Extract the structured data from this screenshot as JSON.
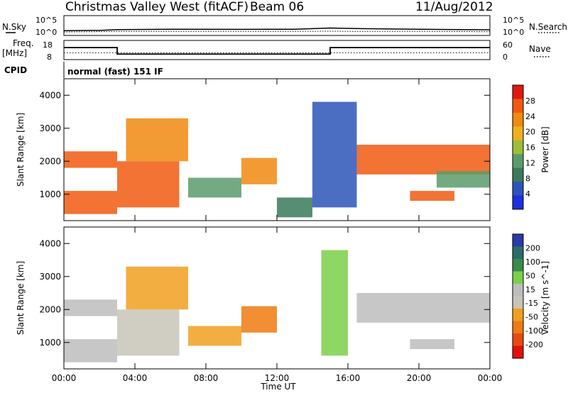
{
  "header": {
    "station_title": "Christmas Valley West (fitACF)",
    "beam_label": "Beam 06",
    "date_label": "11/Aug/2012",
    "cpid_label": "CPID",
    "cpid_value": "normal (fast) 151 IF"
  },
  "sky_panel": {
    "left_label": "N.Sky",
    "right_label": "N.Search",
    "left_ticks": [
      "10^5",
      "10^0"
    ],
    "right_ticks": [
      "10^5",
      "10^0"
    ]
  },
  "freq_panel": {
    "left_label_1": "Freq.",
    "left_label_2": "[MHz]",
    "right_label": "Nave",
    "left_ticks": [
      "18",
      "8"
    ],
    "right_ticks": [
      "60",
      "0"
    ]
  },
  "colors": {
    "power_scale": [
      "#1f2fe0",
      "#2b55b8",
      "#3a7a5a",
      "#5b9b6b",
      "#9bbf3a",
      "#f0b020",
      "#f08a10",
      "#f05a10",
      "#e01a10"
    ],
    "velocity_scale": [
      "#2a3aa8",
      "#2b6c6a",
      "#3a8a4a",
      "#7ad04a",
      "#bdbdbd",
      "#c8c4b8",
      "#f0a020",
      "#f07a10",
      "#e84a10",
      "#e01010"
    ]
  },
  "chart_data": [
    {
      "type": "line",
      "name": "sky_search_noise",
      "x": [
        "00:00",
        "02:00",
        "03:00",
        "06:00",
        "10:00",
        "13:00",
        "15:00",
        "16:30",
        "20:00",
        "24:00"
      ],
      "series": [
        {
          "values": [
            10,
            12,
            20,
            25,
            24,
            26,
            60,
            40,
            25,
            18
          ]
        },
        {
          "values": [
            4,
            5,
            6,
            6,
            6,
            6,
            7,
            6,
            6,
            5
          ]
        }
      ]
    },
    {
      "type": "line",
      "name": "frequency_and_nave",
      "x": [
        "00:00",
        "03:00",
        "03:00",
        "15:00",
        "15:00",
        "24:00"
      ],
      "series": [
        {
          "values": [
            14.5,
            14.5,
            10.5,
            10.5,
            14.5,
            14.5
          ]
        },
        {
          "values": [
            20,
            20,
            20,
            20,
            20,
            20
          ]
        }
      ]
    },
    {
      "type": "heatmap",
      "title": "Power",
      "xlabel": "Time UT",
      "ylabel": "Slant Range [km]",
      "colorbar_label": "Power [dB]",
      "colorbar_ticks": [
        "28",
        "24",
        "20",
        "16",
        "12",
        "8",
        "4"
      ],
      "xlim": [
        0,
        24
      ],
      "x_ticks": [
        "00:00",
        "04:00",
        "08:00",
        "12:00",
        "16:00",
        "20:00",
        "00:00"
      ],
      "ylim": [
        200,
        4500
      ],
      "y_ticks": [
        "1000",
        "2000",
        "3000",
        "4000"
      ],
      "regions": [
        {
          "t": [
            0.0,
            3.0
          ],
          "r": [
            1800,
            2300
          ],
          "power": 28
        },
        {
          "t": [
            0.0,
            3.0
          ],
          "r": [
            400,
            1100
          ],
          "power": 28
        },
        {
          "t": [
            3.0,
            6.5
          ],
          "r": [
            600,
            2000
          ],
          "power": 26
        },
        {
          "t": [
            3.5,
            7.0
          ],
          "r": [
            2000,
            3300
          ],
          "power": 24
        },
        {
          "t": [
            7.0,
            10.0
          ],
          "r": [
            900,
            1500
          ],
          "power": 14
        },
        {
          "t": [
            10.0,
            12.0
          ],
          "r": [
            1300,
            2100
          ],
          "power": 22
        },
        {
          "t": [
            12.0,
            14.0
          ],
          "r": [
            300,
            900
          ],
          "power": 8
        },
        {
          "t": [
            14.0,
            16.5
          ],
          "r": [
            600,
            3800
          ],
          "power": 6
        },
        {
          "t": [
            16.5,
            24.0
          ],
          "r": [
            1600,
            2500
          ],
          "power": 28
        },
        {
          "t": [
            19.5,
            22.0
          ],
          "r": [
            800,
            1100
          ],
          "power": 26
        },
        {
          "t": [
            21.0,
            24.0
          ],
          "r": [
            1200,
            1700
          ],
          "power": 12
        }
      ]
    },
    {
      "type": "heatmap",
      "title": "Velocity",
      "xlabel": "Time UT",
      "ylabel": "Slant Range [km]",
      "colorbar_label": "Velocity [m s^-1]",
      "colorbar_ticks": [
        "200",
        "100",
        "50",
        "15",
        "-15",
        "-50",
        "-100",
        "-200"
      ],
      "xlim": [
        0,
        24
      ],
      "x_ticks": [
        "00:00",
        "04:00",
        "08:00",
        "12:00",
        "16:00",
        "20:00",
        "00:00"
      ],
      "ylim": [
        200,
        4500
      ],
      "y_ticks": [
        "1000",
        "2000",
        "3000",
        "4000"
      ],
      "regions": [
        {
          "t": [
            0.0,
            3.0
          ],
          "r": [
            1800,
            2300
          ],
          "velocity": 0
        },
        {
          "t": [
            0.0,
            3.0
          ],
          "r": [
            400,
            1100
          ],
          "velocity": 0
        },
        {
          "t": [
            3.0,
            6.5
          ],
          "r": [
            600,
            2000
          ],
          "velocity": -10
        },
        {
          "t": [
            3.5,
            7.0
          ],
          "r": [
            2000,
            3300
          ],
          "velocity": -40
        },
        {
          "t": [
            7.0,
            10.0
          ],
          "r": [
            900,
            1500
          ],
          "velocity": -40
        },
        {
          "t": [
            10.0,
            12.0
          ],
          "r": [
            1300,
            2100
          ],
          "velocity": -80
        },
        {
          "t": [
            14.5,
            16.0
          ],
          "r": [
            600,
            3800
          ],
          "velocity": 40
        },
        {
          "t": [
            16.5,
            24.0
          ],
          "r": [
            1600,
            2500
          ],
          "velocity": 0
        },
        {
          "t": [
            19.5,
            22.0
          ],
          "r": [
            800,
            1100
          ],
          "velocity": 0
        }
      ]
    }
  ]
}
